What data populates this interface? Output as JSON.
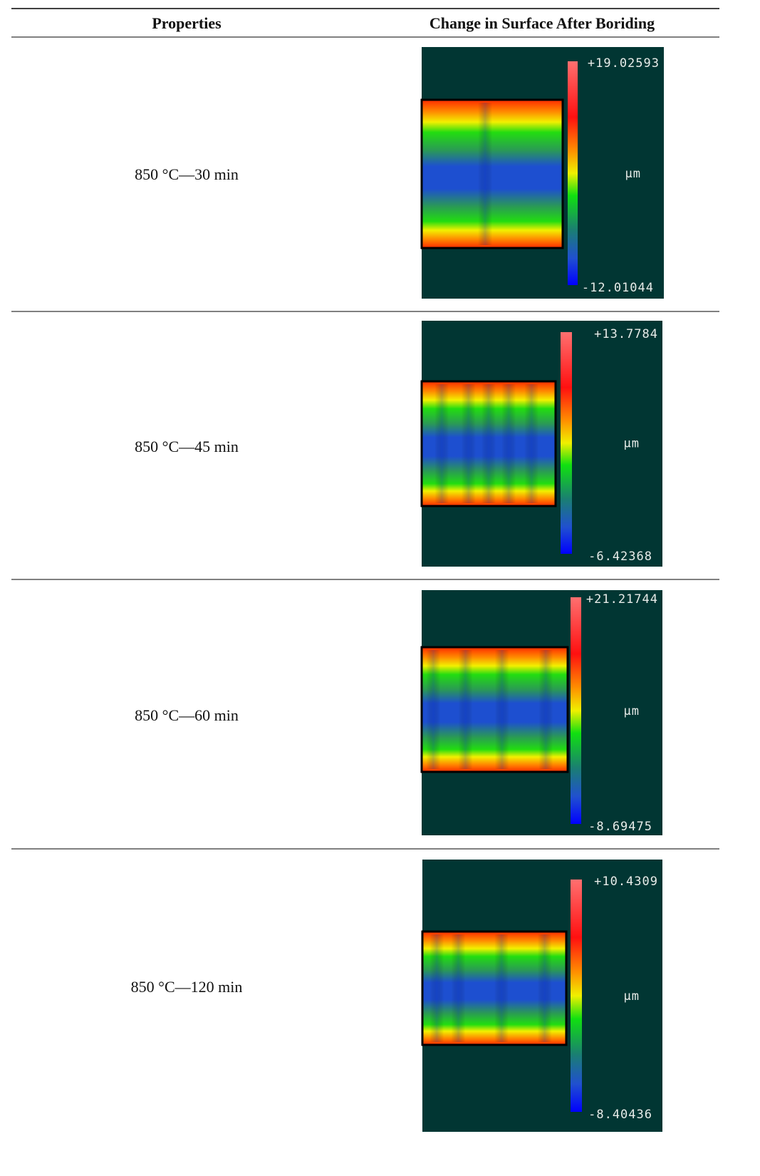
{
  "table": {
    "headers": [
      "Properties",
      "Change in Surface After Boriding"
    ],
    "rows": [
      {
        "label": "850 °C—30 min",
        "image": {
          "max": "+19.02593",
          "unit": "µm",
          "min": "-12.01044"
        }
      },
      {
        "label": "850 °C—45 min",
        "image": {
          "max": "+13.7784",
          "unit": "µm",
          "min": "-6.42368"
        }
      },
      {
        "label": "850 °C—60 min",
        "image": {
          "max": "+21.21744",
          "unit": "µm",
          "min": "-8.69475"
        }
      },
      {
        "label": "850 °C—120 min",
        "image": {
          "max": "+10.4309",
          "unit": "µm",
          "min": "-8.40436"
        }
      }
    ]
  }
}
